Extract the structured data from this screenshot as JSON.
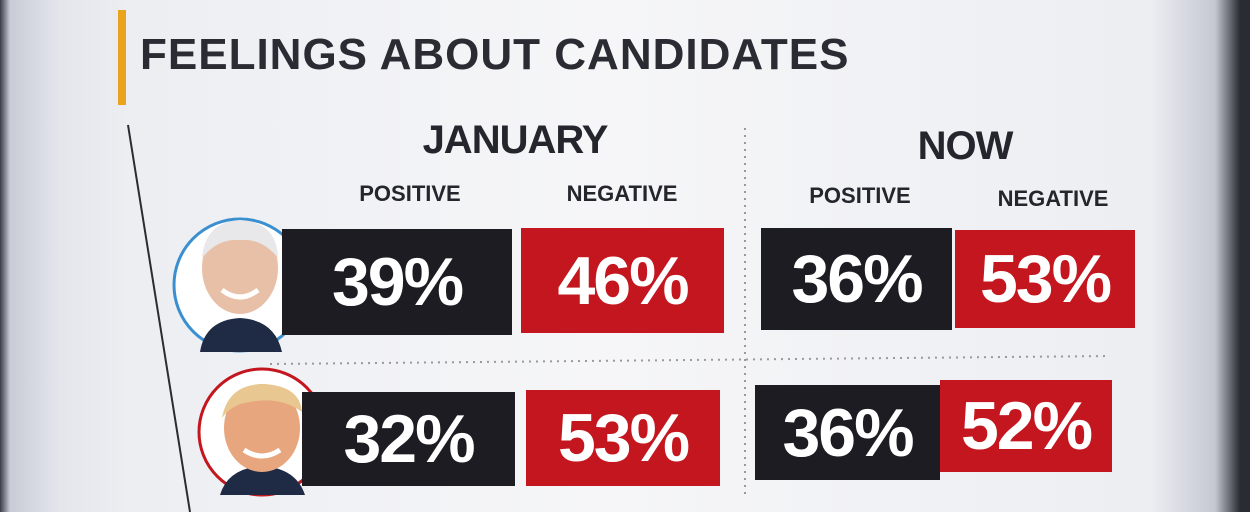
{
  "header": {
    "title": "FEELINGS ABOUT CANDIDATES"
  },
  "table": {
    "groups": [
      {
        "label": "JANUARY",
        "columns": [
          "POSITIVE",
          "NEGATIVE"
        ]
      },
      {
        "label": "NOW",
        "columns": [
          "POSITIVE",
          "NEGATIVE"
        ]
      }
    ],
    "rows": [
      [
        "39%",
        "46%",
        "36%",
        "53%"
      ],
      [
        "32%",
        "53%",
        "36%",
        "52%"
      ]
    ]
  }
}
